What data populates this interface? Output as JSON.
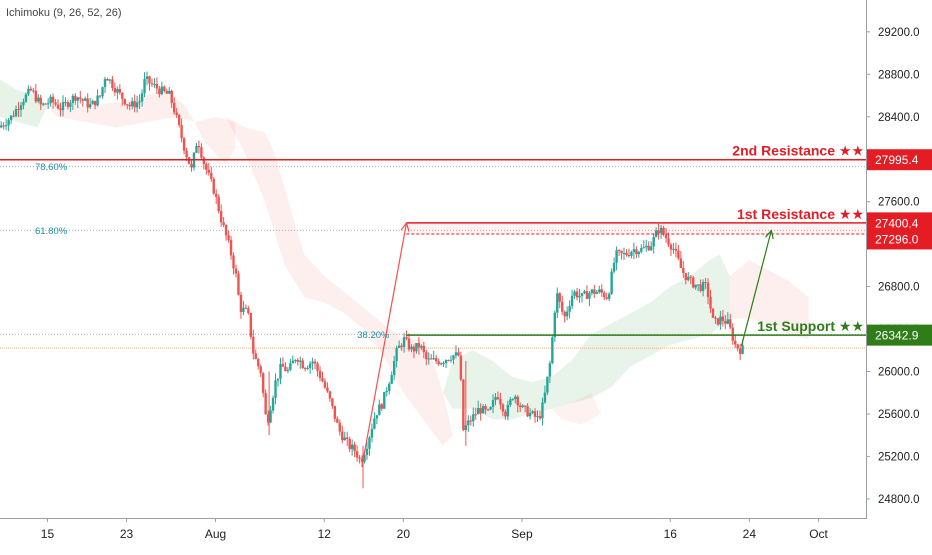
{
  "indicator": "Ichimoku (9, 26, 52, 26)",
  "chart_data": {
    "type": "candlestick",
    "ylim": [
      24620,
      29500
    ],
    "y_ticks": [
      "24800.0",
      "25200.0",
      "25600.0",
      "26000.0",
      "26400.0",
      "26800.0",
      "27200.0",
      "27600.0",
      "28000.0",
      "28400.0",
      "28800.0",
      "29200.0"
    ],
    "x_ticks": [
      {
        "label": "15",
        "day": 15
      },
      {
        "label": "23",
        "day": 23
      },
      {
        "label": "Aug",
        "day": 32
      },
      {
        "label": "12",
        "day": 43
      },
      {
        "label": "20",
        "day": 51
      },
      {
        "label": "Sep",
        "day": 63
      },
      {
        "label": "16",
        "day": 78
      },
      {
        "label": "24",
        "day": 86
      },
      {
        "label": "Oct",
        "day": 93
      }
    ],
    "xlim_days": [
      10.2,
      97.8
    ],
    "price_path": [
      [
        10.2,
        28300
      ],
      [
        11.5,
        28400
      ],
      [
        12.5,
        28550
      ],
      [
        13.5,
        28650
      ],
      [
        14.5,
        28500
      ],
      [
        15.5,
        28550
      ],
      [
        16.5,
        28480
      ],
      [
        18,
        28600
      ],
      [
        19.5,
        28500
      ],
      [
        20.5,
        28600
      ],
      [
        21,
        28800
      ],
      [
        22.5,
        28600
      ],
      [
        23.5,
        28500
      ],
      [
        24.5,
        28550
      ],
      [
        25,
        28750
      ],
      [
        26.5,
        28650
      ],
      [
        27.5,
        28600
      ],
      [
        28,
        28450
      ],
      [
        29,
        28100
      ],
      [
        29.7,
        27900
      ],
      [
        30.3,
        28200
      ],
      [
        31,
        27950
      ],
      [
        32,
        27700
      ],
      [
        32.8,
        27400
      ],
      [
        33.6,
        27150
      ],
      [
        34.2,
        26900
      ],
      [
        34.6,
        26600
      ],
      [
        35.4,
        26550
      ],
      [
        36,
        26150
      ],
      [
        36.7,
        26000
      ],
      [
        37.3,
        25500
      ],
      [
        38.2,
        25900
      ],
      [
        38.8,
        26050
      ],
      [
        39.5,
        26000
      ],
      [
        40.3,
        26150
      ],
      [
        41.1,
        26050
      ],
      [
        42,
        26100
      ],
      [
        43,
        25900
      ],
      [
        43.8,
        25700
      ],
      [
        44.6,
        25450
      ],
      [
        45.6,
        25300
      ],
      [
        46.3,
        25250
      ],
      [
        46.8,
        25150
      ],
      [
        47.4,
        25300
      ],
      [
        48.3,
        25600
      ],
      [
        49,
        25700
      ],
      [
        49.8,
        25950
      ],
      [
        50.5,
        26200
      ],
      [
        51.2,
        26300
      ],
      [
        52,
        26200
      ],
      [
        52.8,
        26250
      ],
      [
        53.5,
        26100
      ],
      [
        54.2,
        26100
      ],
      [
        55,
        26100
      ],
      [
        56,
        26150
      ],
      [
        56.8,
        26150
      ],
      [
        57.2,
        25450
      ],
      [
        58,
        25550
      ],
      [
        58.8,
        25650
      ],
      [
        59.8,
        25600
      ],
      [
        60.6,
        25800
      ],
      [
        61.5,
        25600
      ],
      [
        62.3,
        25800
      ],
      [
        63.1,
        25650
      ],
      [
        64,
        25600
      ],
      [
        64.8,
        25550
      ],
      [
        65.3,
        25700
      ],
      [
        66,
        26100
      ],
      [
        66.6,
        26750
      ],
      [
        67.4,
        26500
      ],
      [
        68.3,
        26750
      ],
      [
        69.2,
        26700
      ],
      [
        70.1,
        26750
      ],
      [
        71,
        26750
      ],
      [
        71.8,
        26700
      ],
      [
        72.6,
        27100
      ],
      [
        73.5,
        27100
      ],
      [
        74.4,
        27150
      ],
      [
        75.3,
        27150
      ],
      [
        76.2,
        27200
      ],
      [
        77,
        27350
      ],
      [
        77.8,
        27250
      ],
      [
        78.5,
        27150
      ],
      [
        79.3,
        26950
      ],
      [
        80.1,
        26850
      ],
      [
        81,
        26800
      ],
      [
        81.8,
        26800
      ],
      [
        82.5,
        26450
      ],
      [
        83.3,
        26500
      ],
      [
        84,
        26450
      ],
      [
        84.7,
        26250
      ],
      [
        85.2,
        26210
      ]
    ],
    "levels": [
      {
        "name": "2nd Resistance",
        "label": "2nd Resistance ★★",
        "value": 27995.4,
        "value_label": "27995.4",
        "color": "#e41d25"
      },
      {
        "name": "1st Resistance",
        "label": "1st Resistance ★★",
        "value": 27400.4,
        "value_label": "27400.4",
        "color": "#e41d25"
      },
      {
        "name": "1st Resistance (low)",
        "label": "",
        "value": 27296.0,
        "value_label": "27296.0",
        "color": "#e41d25"
      },
      {
        "name": "1st Support",
        "label": "1st Support ★★",
        "value": 26342.9,
        "value_label": "26342.9",
        "color": "#2e7d18"
      }
    ],
    "fib_levels": [
      {
        "label": "78.60%",
        "value": 27930
      },
      {
        "label": "61.80%",
        "value": 27330
      },
      {
        "label": "38.20%",
        "value": 26350
      }
    ],
    "current_price_value": 26220,
    "up_color": "#26a69a",
    "down_color": "#ef5350"
  }
}
